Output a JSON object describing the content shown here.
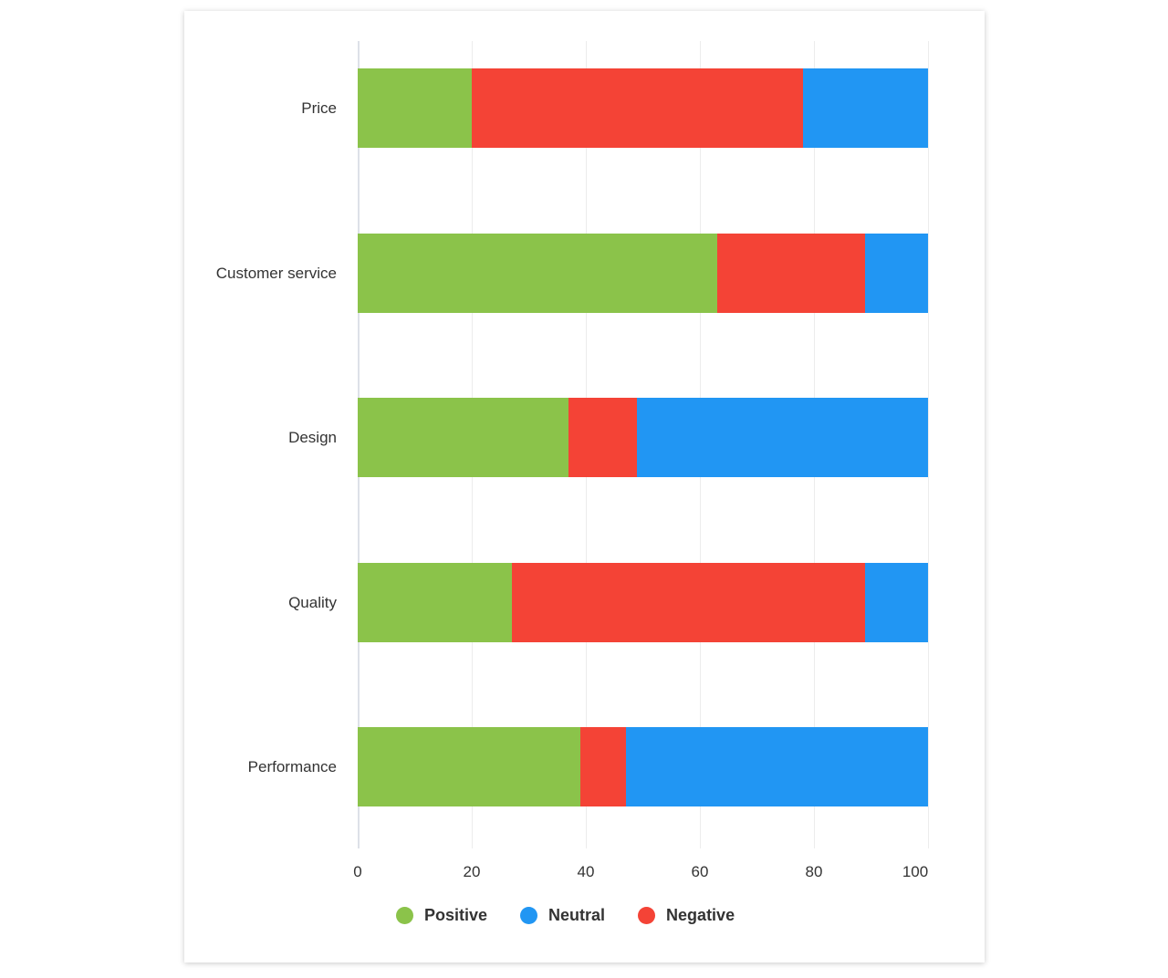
{
  "chart_data": {
    "type": "bar",
    "orientation": "horizontal",
    "stacked": true,
    "title": "",
    "xlabel": "",
    "ylabel": "",
    "xlim": [
      0,
      100
    ],
    "x_ticks": [
      "0",
      "20",
      "40",
      "60",
      "80",
      "100"
    ],
    "grid": true,
    "legend_position": "bottom",
    "categories": [
      "Price",
      "Customer service",
      "Design",
      "Quality",
      "Performance"
    ],
    "series": [
      {
        "name": "Positive",
        "color": "#8bc34a",
        "values": [
          20,
          63,
          37,
          27,
          39
        ]
      },
      {
        "name": "Negative",
        "color": "#f44336",
        "values": [
          58,
          26,
          12,
          62,
          8
        ]
      },
      {
        "name": "Neutral",
        "color": "#2196f3",
        "values": [
          22,
          11,
          51,
          11,
          53
        ]
      }
    ],
    "legend": [
      {
        "name": "Positive",
        "color": "#8bc34a"
      },
      {
        "name": "Neutral",
        "color": "#2196f3"
      },
      {
        "name": "Negative",
        "color": "#f44336"
      }
    ]
  }
}
